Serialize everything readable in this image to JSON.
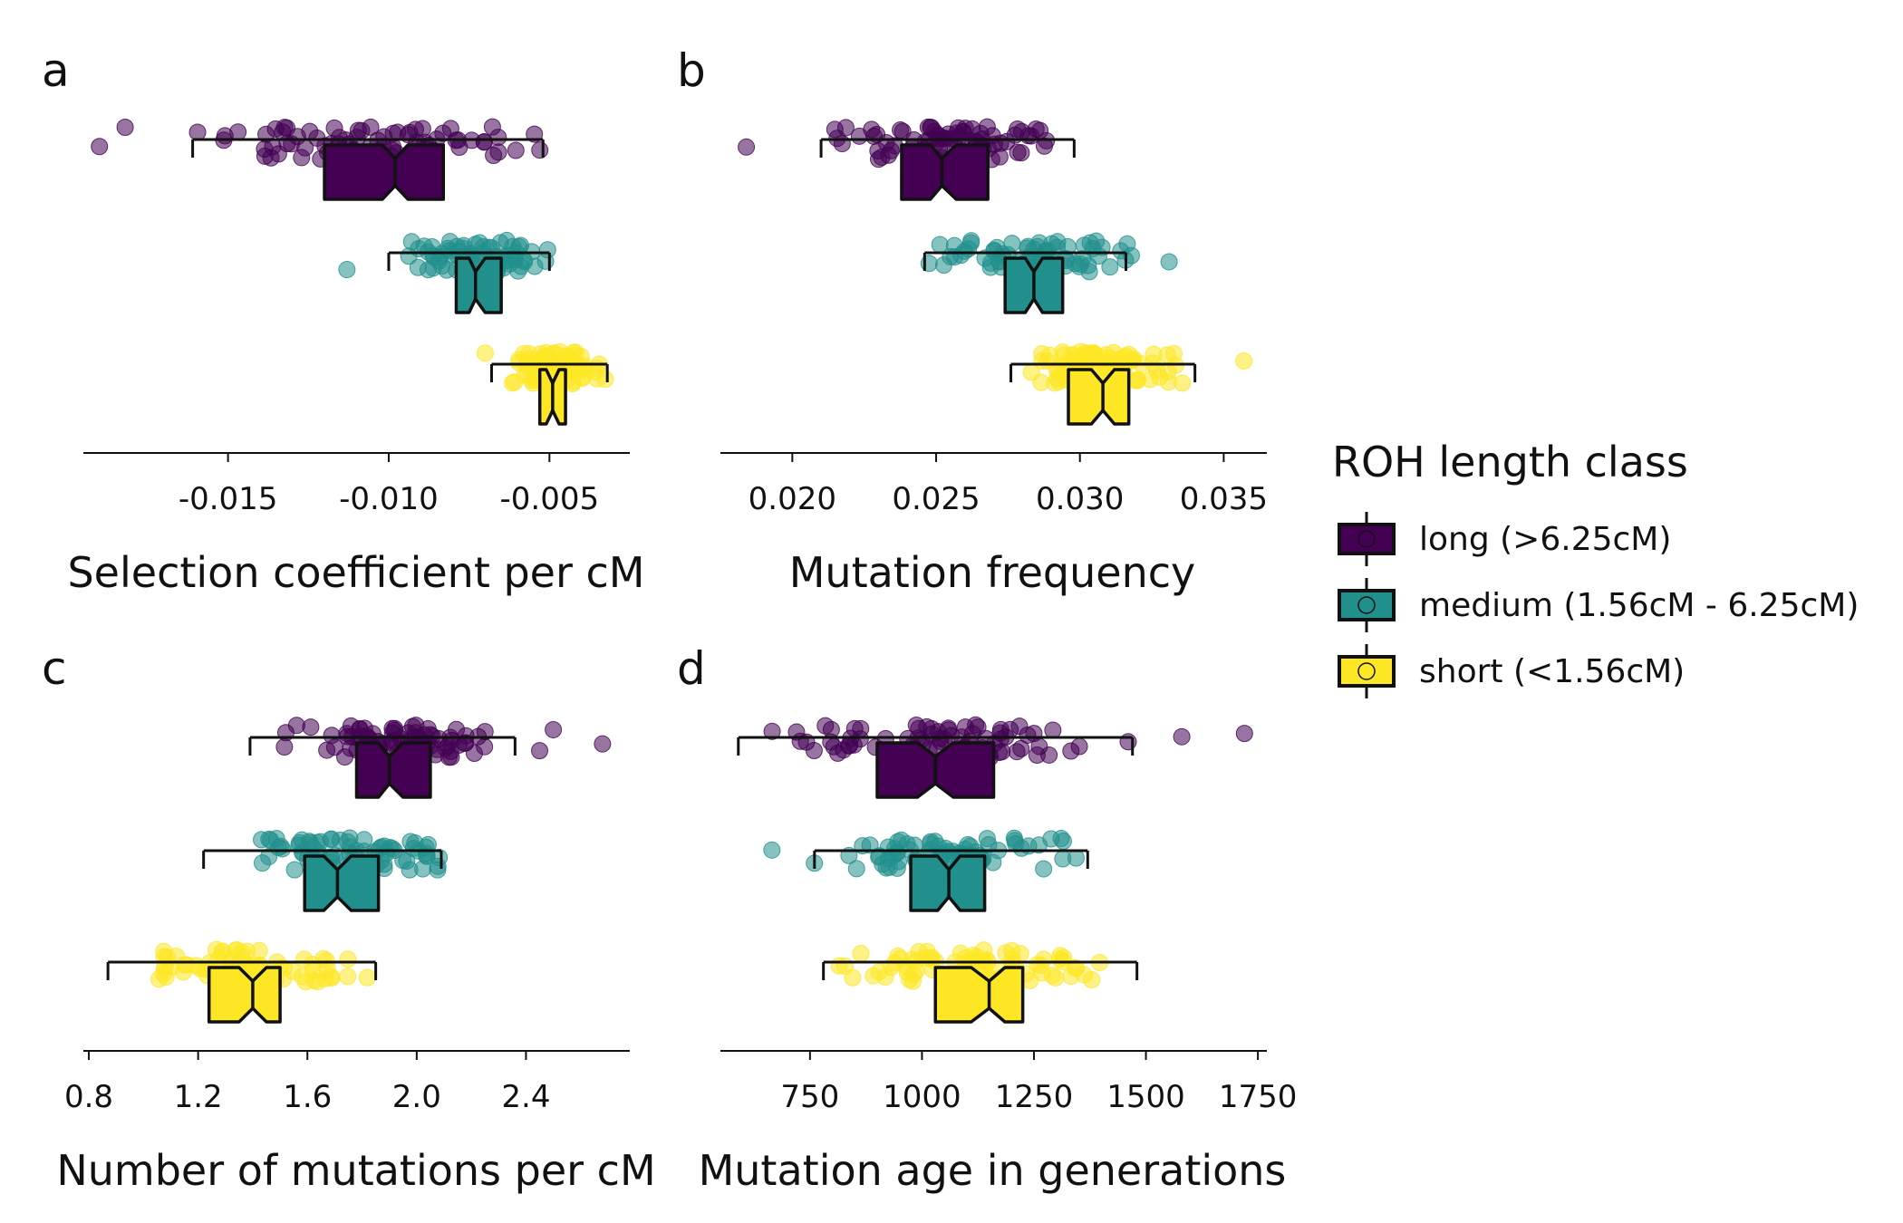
{
  "palette": {
    "long": "#440154",
    "medium": "#21908C",
    "short": "#FDE725"
  },
  "legend": {
    "title": "ROH length class",
    "items": [
      {
        "key": "long",
        "label": "long (>6.25cM)"
      },
      {
        "key": "medium",
        "label": "medium (1.56cM - 6.25cM)"
      },
      {
        "key": "short",
        "label": "short (<1.56cM)"
      }
    ]
  },
  "chart_data": [
    {
      "panel": "a",
      "type": "box",
      "xlabel": "Selection coefficient per cM",
      "xlim": [
        -0.0195,
        -0.0025
      ],
      "ticks": [
        -0.015,
        -0.01,
        -0.005
      ],
      "tick_labels": [
        "-0.015",
        "-0.010",
        "-0.005"
      ],
      "series": [
        {
          "key": "long",
          "whisker_low": -0.0161,
          "q1": -0.012,
          "median": -0.0098,
          "q3": -0.0083,
          "whisker_high": -0.0052,
          "notch": [
            -0.0102,
            -0.0094
          ],
          "outliers": [
            -0.019,
            -0.0182
          ],
          "jitter_range": [
            -0.016,
            -0.005
          ],
          "n": 80
        },
        {
          "key": "medium",
          "whisker_low": -0.01,
          "q1": -0.0079,
          "median": -0.0073,
          "q3": -0.0065,
          "whisker_high": -0.005,
          "notch": [
            -0.0075,
            -0.007
          ],
          "outliers": [
            -0.0113
          ],
          "jitter_range": [
            -0.01,
            -0.0045
          ],
          "n": 80
        },
        {
          "key": "short",
          "whisker_low": -0.0068,
          "q1": -0.0053,
          "median": -0.0049,
          "q3": -0.0045,
          "whisker_high": -0.0032,
          "notch": [
            -0.0051,
            -0.0047
          ],
          "outliers": [
            -0.007
          ],
          "jitter_range": [
            -0.0068,
            -0.0031
          ],
          "n": 80
        }
      ]
    },
    {
      "panel": "b",
      "type": "box",
      "xlabel": "Mutation frequency",
      "xlim": [
        0.0175,
        0.0365
      ],
      "ticks": [
        0.02,
        0.025,
        0.03,
        0.035
      ],
      "tick_labels": [
        "0.020",
        "0.025",
        "0.030",
        "0.035"
      ],
      "series": [
        {
          "key": "long",
          "whisker_low": 0.021,
          "q1": 0.0238,
          "median": 0.0252,
          "q3": 0.0268,
          "whisker_high": 0.0298,
          "notch": [
            0.0248,
            0.0257
          ],
          "outliers": [
            0.0184
          ],
          "jitter_range": [
            0.021,
            0.03
          ],
          "n": 80
        },
        {
          "key": "medium",
          "whisker_low": 0.0246,
          "q1": 0.0274,
          "median": 0.0284,
          "q3": 0.0294,
          "whisker_high": 0.0316,
          "notch": [
            0.0281,
            0.0287
          ],
          "outliers": [
            0.0331
          ],
          "jitter_range": [
            0.0246,
            0.0318
          ],
          "n": 80
        },
        {
          "key": "short",
          "whisker_low": 0.0276,
          "q1": 0.0296,
          "median": 0.0308,
          "q3": 0.0317,
          "whisker_high": 0.034,
          "notch": [
            0.0304,
            0.0312
          ],
          "outliers": [
            0.0357
          ],
          "jitter_range": [
            0.0275,
            0.0345
          ],
          "n": 80
        }
      ]
    },
    {
      "panel": "c",
      "type": "box",
      "xlabel": "Number of mutations per cM",
      "xlim": [
        0.78,
        2.78
      ],
      "ticks": [
        0.8,
        1.2,
        1.6,
        2.0,
        2.4
      ],
      "tick_labels": [
        "0.8",
        "1.2",
        "1.6",
        "2.0",
        "2.4"
      ],
      "series": [
        {
          "key": "long",
          "whisker_low": 1.39,
          "q1": 1.78,
          "median": 1.9,
          "q3": 2.05,
          "whisker_high": 2.36,
          "notch": [
            1.86,
            1.95
          ],
          "outliers": [
            2.5,
            2.68,
            2.45
          ],
          "jitter_range": [
            1.33,
            2.4
          ],
          "n": 80
        },
        {
          "key": "medium",
          "whisker_low": 1.22,
          "q1": 1.59,
          "median": 1.71,
          "q3": 1.86,
          "whisker_high": 2.09,
          "notch": [
            1.66,
            1.76
          ],
          "outliers": [],
          "jitter_range": [
            1.22,
            2.1
          ],
          "n": 80
        },
        {
          "key": "short",
          "whisker_low": 0.87,
          "q1": 1.24,
          "median": 1.4,
          "q3": 1.5,
          "whisker_high": 1.85,
          "notch": [
            1.35,
            1.45
          ],
          "outliers": [],
          "jitter_range": [
            0.87,
            1.85
          ],
          "n": 80
        }
      ]
    },
    {
      "panel": "d",
      "type": "box",
      "xlabel": "Mutation age in generations",
      "xlim": [
        550,
        1770
      ],
      "ticks": [
        750,
        1000,
        1250,
        1500,
        1750
      ],
      "tick_labels": [
        "750",
        "1000",
        "1250",
        "1500",
        "1750"
      ],
      "series": [
        {
          "key": "long",
          "whisker_low": 590,
          "q1": 900,
          "median": 1030,
          "q3": 1160,
          "whisker_high": 1470,
          "notch": [
            990,
            1070
          ],
          "outliers": [
            1580,
            1720
          ],
          "jitter_range": [
            590,
            1470
          ],
          "n": 80
        },
        {
          "key": "medium",
          "whisker_low": 760,
          "q1": 975,
          "median": 1060,
          "q3": 1140,
          "whisker_high": 1370,
          "notch": [
            1035,
            1085
          ],
          "outliers": [
            665
          ],
          "jitter_range": [
            750,
            1370
          ],
          "n": 80
        },
        {
          "key": "short",
          "whisker_low": 780,
          "q1": 1030,
          "median": 1150,
          "q3": 1225,
          "whisker_high": 1480,
          "notch": [
            1110,
            1185
          ],
          "outliers": [],
          "jitter_range": [
            770,
            1480
          ],
          "n": 80
        }
      ]
    }
  ]
}
